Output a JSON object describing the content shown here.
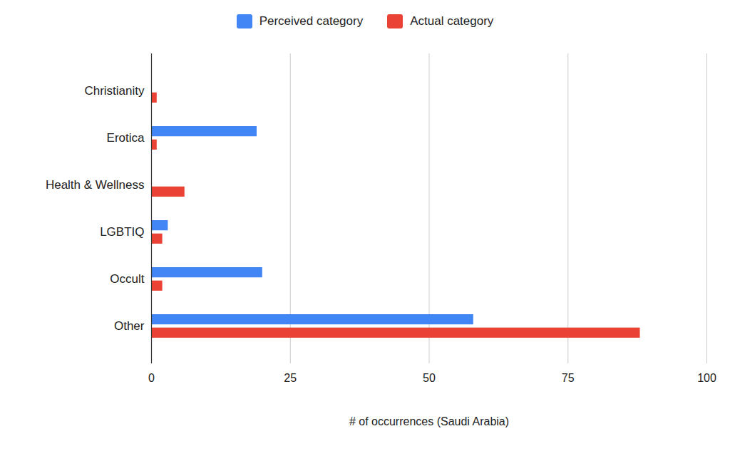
{
  "chart_data": {
    "type": "bar",
    "orientation": "horizontal",
    "categories": [
      "Christianity",
      "Erotica",
      "Health & Wellness",
      "LGBTIQ",
      "Occult",
      "Other"
    ],
    "series": [
      {
        "name": "Perceived category",
        "color": "#4285f4",
        "values": [
          0,
          19,
          0,
          3,
          20,
          58
        ]
      },
      {
        "name": "Actual category",
        "color": "#ea4335",
        "values": [
          1,
          1,
          6,
          2,
          2,
          88
        ]
      }
    ],
    "x_label": "# of occurrences (Saudi Arabia)",
    "xlim": [
      0,
      100
    ],
    "xticks": [
      0,
      25,
      50,
      75,
      100
    ],
    "grid": true,
    "legend": "top"
  }
}
